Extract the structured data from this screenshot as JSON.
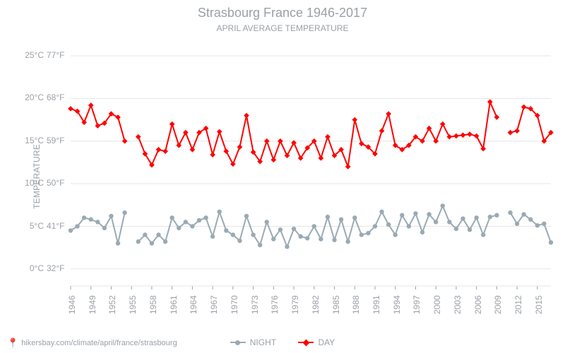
{
  "title_main": "Strasbourg France 1946-2017",
  "title_sub": "April Average Temperature",
  "ylabel": "Temperature",
  "footer_url": "hikersbay.com/climate/april/france/strasbourg",
  "chart": {
    "type": "line",
    "background_color": "#ffffff",
    "grid_color": "#e5e5e5",
    "axis_text_color": "#9aa0a6",
    "title_fontsize": 18,
    "sub_fontsize": 12,
    "tick_fontsize": 12,
    "y_celsius": {
      "min": -2,
      "max": 27,
      "ticks": [
        0,
        5,
        10,
        15,
        20,
        25
      ],
      "suffix": "°C"
    },
    "y_fahrenheit": {
      "ticks": [
        32,
        41,
        50,
        59,
        68,
        77
      ],
      "suffix": "°F"
    },
    "x_years": {
      "min": 1946,
      "max": 2017,
      "tick_step": 3
    },
    "legend": {
      "night": {
        "label": "NIGHT",
        "color": "#9aaab3",
        "marker": "circle"
      },
      "day": {
        "label": "DAY",
        "color": "#ff0000",
        "marker": "diamond"
      }
    },
    "line_width": 2,
    "marker_size": 3.2,
    "series": {
      "day": {
        "color": "#ff0000",
        "values": [
          {
            "x": 1946,
            "y": 18.8
          },
          {
            "x": 1947,
            "y": 18.5
          },
          {
            "x": 1948,
            "y": 17.2
          },
          {
            "x": 1949,
            "y": 19.2
          },
          {
            "x": 1950,
            "y": 16.8
          },
          {
            "x": 1951,
            "y": 17.1
          },
          {
            "x": 1952,
            "y": 18.2
          },
          {
            "x": 1953,
            "y": 17.8
          },
          {
            "x": 1954,
            "y": 15.0
          },
          {
            "x": 1956,
            "y": 15.5
          },
          {
            "x": 1957,
            "y": 13.5
          },
          {
            "x": 1958,
            "y": 12.2
          },
          {
            "x": 1959,
            "y": 14.0
          },
          {
            "x": 1960,
            "y": 13.8
          },
          {
            "x": 1961,
            "y": 17.0
          },
          {
            "x": 1962,
            "y": 14.5
          },
          {
            "x": 1963,
            "y": 16.0
          },
          {
            "x": 1964,
            "y": 14.0
          },
          {
            "x": 1965,
            "y": 16.0
          },
          {
            "x": 1966,
            "y": 16.5
          },
          {
            "x": 1967,
            "y": 13.4
          },
          {
            "x": 1968,
            "y": 16.1
          },
          {
            "x": 1969,
            "y": 13.8
          },
          {
            "x": 1970,
            "y": 12.3
          },
          {
            "x": 1971,
            "y": 14.3
          },
          {
            "x": 1972,
            "y": 18.0
          },
          {
            "x": 1973,
            "y": 13.7
          },
          {
            "x": 1974,
            "y": 12.6
          },
          {
            "x": 1975,
            "y": 15.0
          },
          {
            "x": 1976,
            "y": 12.8
          },
          {
            "x": 1977,
            "y": 15.0
          },
          {
            "x": 1978,
            "y": 13.3
          },
          {
            "x": 1979,
            "y": 14.8
          },
          {
            "x": 1980,
            "y": 13.0
          },
          {
            "x": 1981,
            "y": 14.2
          },
          {
            "x": 1982,
            "y": 15.0
          },
          {
            "x": 1983,
            "y": 13.0
          },
          {
            "x": 1984,
            "y": 15.5
          },
          {
            "x": 1985,
            "y": 13.3
          },
          {
            "x": 1986,
            "y": 14.0
          },
          {
            "x": 1987,
            "y": 12.0
          },
          {
            "x": 1988,
            "y": 17.5
          },
          {
            "x": 1989,
            "y": 14.7
          },
          {
            "x": 1990,
            "y": 14.3
          },
          {
            "x": 1991,
            "y": 13.5
          },
          {
            "x": 1992,
            "y": 16.2
          },
          {
            "x": 1993,
            "y": 18.2
          },
          {
            "x": 1994,
            "y": 14.5
          },
          {
            "x": 1995,
            "y": 14.0
          },
          {
            "x": 1996,
            "y": 14.5
          },
          {
            "x": 1997,
            "y": 15.5
          },
          {
            "x": 1998,
            "y": 15.0
          },
          {
            "x": 1999,
            "y": 16.5
          },
          {
            "x": 2000,
            "y": 15.0
          },
          {
            "x": 2001,
            "y": 17.0
          },
          {
            "x": 2002,
            "y": 15.5
          },
          {
            "x": 2003,
            "y": 15.6
          },
          {
            "x": 2004,
            "y": 15.7
          },
          {
            "x": 2005,
            "y": 15.8
          },
          {
            "x": 2006,
            "y": 15.6
          },
          {
            "x": 2007,
            "y": 14.1
          },
          {
            "x": 2008,
            "y": 19.6
          },
          {
            "x": 2009,
            "y": 17.8
          },
          {
            "x": 2011,
            "y": 16.0
          },
          {
            "x": 2012,
            "y": 16.2
          },
          {
            "x": 2013,
            "y": 19.0
          },
          {
            "x": 2014,
            "y": 18.8
          },
          {
            "x": 2015,
            "y": 18.0
          },
          {
            "x": 2016,
            "y": 15.0
          },
          {
            "x": 2017,
            "y": 16.0
          }
        ]
      },
      "night": {
        "color": "#9aaab3",
        "values": [
          {
            "x": 1946,
            "y": 4.5
          },
          {
            "x": 1947,
            "y": 5.0
          },
          {
            "x": 1948,
            "y": 6.0
          },
          {
            "x": 1949,
            "y": 5.8
          },
          {
            "x": 1950,
            "y": 5.5
          },
          {
            "x": 1951,
            "y": 4.8
          },
          {
            "x": 1952,
            "y": 6.2
          },
          {
            "x": 1953,
            "y": 3.0
          },
          {
            "x": 1954,
            "y": 6.6
          },
          {
            "x": 1956,
            "y": 3.2
          },
          {
            "x": 1957,
            "y": 4.0
          },
          {
            "x": 1958,
            "y": 3.0
          },
          {
            "x": 1959,
            "y": 4.0
          },
          {
            "x": 1960,
            "y": 3.2
          },
          {
            "x": 1961,
            "y": 6.0
          },
          {
            "x": 1962,
            "y": 4.8
          },
          {
            "x": 1963,
            "y": 5.5
          },
          {
            "x": 1964,
            "y": 5.0
          },
          {
            "x": 1965,
            "y": 5.7
          },
          {
            "x": 1966,
            "y": 6.0
          },
          {
            "x": 1967,
            "y": 3.8
          },
          {
            "x": 1968,
            "y": 6.7
          },
          {
            "x": 1969,
            "y": 4.5
          },
          {
            "x": 1970,
            "y": 4.0
          },
          {
            "x": 1971,
            "y": 3.3
          },
          {
            "x": 1972,
            "y": 6.2
          },
          {
            "x": 1973,
            "y": 4.0
          },
          {
            "x": 1974,
            "y": 2.8
          },
          {
            "x": 1975,
            "y": 5.5
          },
          {
            "x": 1976,
            "y": 3.5
          },
          {
            "x": 1977,
            "y": 4.6
          },
          {
            "x": 1978,
            "y": 2.6
          },
          {
            "x": 1979,
            "y": 4.7
          },
          {
            "x": 1980,
            "y": 3.8
          },
          {
            "x": 1981,
            "y": 3.6
          },
          {
            "x": 1982,
            "y": 5.0
          },
          {
            "x": 1983,
            "y": 3.5
          },
          {
            "x": 1984,
            "y": 6.1
          },
          {
            "x": 1985,
            "y": 3.4
          },
          {
            "x": 1986,
            "y": 5.8
          },
          {
            "x": 1987,
            "y": 3.2
          },
          {
            "x": 1988,
            "y": 6.0
          },
          {
            "x": 1989,
            "y": 4.0
          },
          {
            "x": 1990,
            "y": 4.2
          },
          {
            "x": 1991,
            "y": 5.0
          },
          {
            "x": 1992,
            "y": 6.7
          },
          {
            "x": 1993,
            "y": 5.2
          },
          {
            "x": 1994,
            "y": 4.0
          },
          {
            "x": 1995,
            "y": 6.3
          },
          {
            "x": 1996,
            "y": 5.0
          },
          {
            "x": 1997,
            "y": 6.5
          },
          {
            "x": 1998,
            "y": 4.3
          },
          {
            "x": 1999,
            "y": 6.4
          },
          {
            "x": 2000,
            "y": 5.5
          },
          {
            "x": 2001,
            "y": 7.4
          },
          {
            "x": 2002,
            "y": 5.5
          },
          {
            "x": 2003,
            "y": 4.7
          },
          {
            "x": 2004,
            "y": 5.9
          },
          {
            "x": 2005,
            "y": 4.6
          },
          {
            "x": 2006,
            "y": 6.0
          },
          {
            "x": 2007,
            "y": 4.0
          },
          {
            "x": 2008,
            "y": 6.1
          },
          {
            "x": 2009,
            "y": 6.3
          },
          {
            "x": 2011,
            "y": 6.6
          },
          {
            "x": 2012,
            "y": 5.3
          },
          {
            "x": 2013,
            "y": 6.4
          },
          {
            "x": 2014,
            "y": 5.8
          },
          {
            "x": 2015,
            "y": 5.1
          },
          {
            "x": 2016,
            "y": 5.3
          },
          {
            "x": 2017,
            "y": 3.1
          }
        ]
      }
    }
  }
}
